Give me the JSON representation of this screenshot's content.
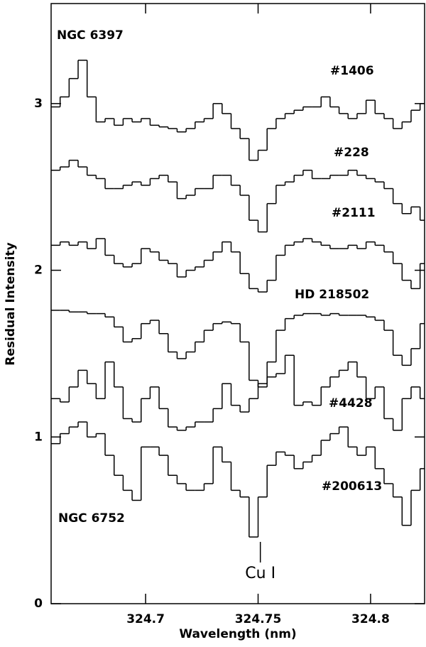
{
  "chart_data": {
    "type": "line",
    "drawstyle": "steps-mid",
    "x_label": "Wavelength (nm)",
    "y_label": "Residual Intensity",
    "xlim": [
      324.658,
      324.824
    ],
    "ylim": [
      0,
      3.6
    ],
    "xticks": [
      324.7,
      324.75,
      324.8
    ],
    "yticks": [
      0,
      1,
      2,
      3
    ],
    "x": [
      324.66,
      324.664,
      324.668,
      324.672,
      324.676,
      324.68,
      324.684,
      324.688,
      324.692,
      324.696,
      324.7,
      324.704,
      324.708,
      324.712,
      324.716,
      324.72,
      324.724,
      324.728,
      324.732,
      324.736,
      324.74,
      324.744,
      324.748,
      324.752,
      324.756,
      324.76,
      324.764,
      324.768,
      324.772,
      324.776,
      324.78,
      324.784,
      324.788,
      324.792,
      324.796,
      324.8,
      324.804,
      324.808,
      324.812,
      324.816,
      324.82,
      324.824
    ],
    "series": [
      {
        "name": "#1406",
        "color": "#000000",
        "values": [
          2.98,
          3.04,
          3.15,
          3.26,
          3.04,
          2.89,
          2.91,
          2.87,
          2.91,
          2.89,
          2.91,
          2.87,
          2.86,
          2.85,
          2.83,
          2.85,
          2.89,
          2.91,
          3.0,
          2.94,
          2.85,
          2.79,
          2.66,
          2.72,
          2.85,
          2.91,
          2.94,
          2.96,
          2.98,
          2.98,
          3.04,
          2.98,
          2.94,
          2.91,
          2.94,
          3.02,
          2.94,
          2.91,
          2.85,
          2.89,
          2.96,
          3.0
        ]
      },
      {
        "name": "#228",
        "color": "#000000",
        "values": [
          2.6,
          2.62,
          2.66,
          2.62,
          2.57,
          2.55,
          2.49,
          2.49,
          2.51,
          2.53,
          2.51,
          2.55,
          2.57,
          2.53,
          2.43,
          2.45,
          2.49,
          2.49,
          2.57,
          2.57,
          2.51,
          2.45,
          2.3,
          2.23,
          2.4,
          2.51,
          2.53,
          2.57,
          2.6,
          2.55,
          2.55,
          2.57,
          2.57,
          2.6,
          2.57,
          2.55,
          2.53,
          2.49,
          2.4,
          2.34,
          2.38,
          2.3
        ]
      },
      {
        "name": "#2111",
        "color": "#000000",
        "values": [
          2.15,
          2.17,
          2.15,
          2.17,
          2.13,
          2.19,
          2.09,
          2.04,
          2.02,
          2.04,
          2.13,
          2.11,
          2.06,
          2.04,
          1.96,
          2.0,
          2.02,
          2.06,
          2.11,
          2.17,
          2.11,
          1.98,
          1.89,
          1.87,
          1.94,
          2.09,
          2.15,
          2.17,
          2.19,
          2.17,
          2.15,
          2.13,
          2.13,
          2.15,
          2.13,
          2.17,
          2.15,
          2.11,
          2.04,
          1.94,
          1.89,
          2.04
        ]
      },
      {
        "name": "HD 218502",
        "color": "#000000",
        "values": [
          1.76,
          1.76,
          1.75,
          1.75,
          1.74,
          1.74,
          1.72,
          1.66,
          1.57,
          1.59,
          1.68,
          1.7,
          1.62,
          1.51,
          1.47,
          1.51,
          1.57,
          1.64,
          1.68,
          1.69,
          1.68,
          1.57,
          1.34,
          1.3,
          1.45,
          1.64,
          1.71,
          1.73,
          1.74,
          1.74,
          1.73,
          1.74,
          1.73,
          1.73,
          1.73,
          1.72,
          1.7,
          1.64,
          1.49,
          1.43,
          1.53,
          1.68
        ]
      },
      {
        "name": "#4428",
        "color": "#000000",
        "values": [
          1.23,
          1.21,
          1.3,
          1.4,
          1.32,
          1.23,
          1.45,
          1.3,
          1.11,
          1.09,
          1.23,
          1.3,
          1.17,
          1.06,
          1.04,
          1.06,
          1.09,
          1.09,
          1.17,
          1.32,
          1.19,
          1.15,
          1.23,
          1.32,
          1.36,
          1.38,
          1.49,
          1.19,
          1.21,
          1.19,
          1.3,
          1.36,
          1.4,
          1.45,
          1.36,
          1.23,
          1.3,
          1.11,
          1.04,
          1.23,
          1.3,
          1.23
        ]
      },
      {
        "name": "#200613",
        "color": "#000000",
        "values": [
          0.96,
          1.02,
          1.06,
          1.09,
          1.0,
          1.02,
          0.89,
          0.77,
          0.68,
          0.62,
          0.94,
          0.94,
          0.89,
          0.77,
          0.72,
          0.68,
          0.68,
          0.72,
          0.94,
          0.85,
          0.68,
          0.64,
          0.4,
          0.64,
          0.83,
          0.91,
          0.89,
          0.81,
          0.85,
          0.89,
          0.98,
          1.02,
          1.06,
          0.94,
          0.89,
          0.94,
          0.81,
          0.72,
          0.64,
          0.47,
          0.68,
          0.81
        ]
      }
    ],
    "annotations": [
      "NGC 6397",
      "NGC 6752"
    ],
    "marker": {
      "label": "Cu I",
      "x": 324.751
    }
  }
}
